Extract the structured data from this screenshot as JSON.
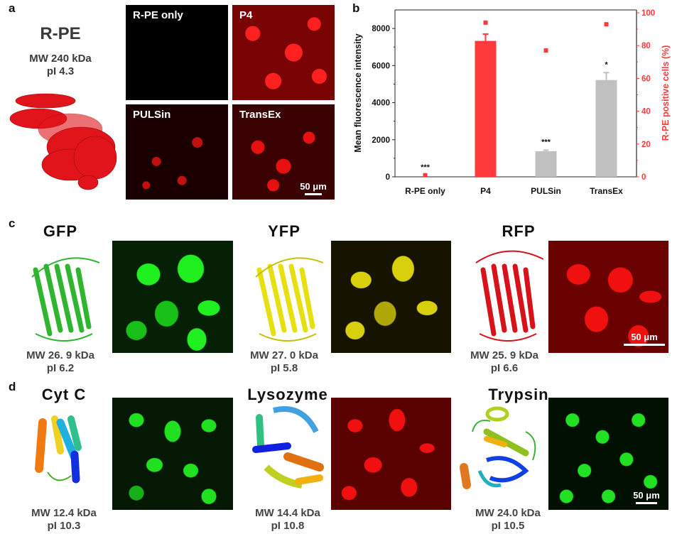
{
  "panel_a": {
    "letter": "a",
    "protein": {
      "name": "R-PE",
      "mw": "MW 240 kDa",
      "pi": "pI 4.3",
      "color": "#e0141a"
    },
    "images": [
      {
        "label": "R-PE only",
        "tint": "#000000"
      },
      {
        "label": "P4",
        "tint": "#e81010"
      },
      {
        "label": "PULSin",
        "tint": "#a00808"
      },
      {
        "label": "TransEx",
        "tint": "#c80c0c"
      }
    ],
    "scale_bar": "50 μm"
  },
  "panel_b": {
    "letter": "b"
  },
  "chart_data": {
    "type": "bar",
    "categories": [
      "R-PE only",
      "P4",
      "PULSin",
      "TransEx"
    ],
    "series": [
      {
        "name": "Mean fluorescence intensity",
        "axis": "left",
        "values": [
          0,
          7330,
          1380,
          5220
        ],
        "errors": [
          0,
          370,
          60,
          400
        ],
        "colors": [
          "#ff3a3a",
          "#ff3a3a",
          "#c0c0c0",
          "#c0c0c0"
        ]
      },
      {
        "name": "R-PE positive cells (%)",
        "axis": "right",
        "type": "scatter",
        "values": [
          1,
          94,
          77,
          93
        ],
        "color": "#ff3a3a"
      }
    ],
    "significance": [
      "***",
      "",
      "***",
      "*"
    ],
    "ylabel": "Mean fluorescence intensity",
    "ylabel_right": "R-PE positive cells (%)",
    "ylim": [
      0,
      9000
    ],
    "ylim_right": [
      0,
      100
    ],
    "yticks": [
      "0",
      "2000",
      "4000",
      "6000",
      "8000"
    ],
    "yticks_right": [
      "0",
      "20",
      "40",
      "60",
      "80",
      "100"
    ],
    "grid": false
  },
  "panel_c": {
    "letter": "c",
    "proteins": [
      {
        "name": "GFP",
        "mw": "MW 26. 9 kDa",
        "pi": "pI 6.2",
        "color": "#2fb52f",
        "cell": "#18e018"
      },
      {
        "name": "YFP",
        "mw": "MW 27. 0 kDa",
        "pi": "pI 5.8",
        "color": "#e6e010",
        "cell": "#d8d00c"
      },
      {
        "name": "RFP",
        "mw": "MW 25. 9 kDa",
        "pi": "pI 6.6",
        "color": "#d8121a",
        "cell": "#e81010"
      }
    ],
    "scale_bar": "50 μm"
  },
  "panel_d": {
    "letter": "d",
    "proteins": [
      {
        "name": "Cyt C",
        "mw": "MW 12.4  kDa",
        "pi": "pI 10.3",
        "cell": "#20e020"
      },
      {
        "name": "Lysozyme",
        "mw": "MW 14.4  kDa",
        "pi": "pI 10.8",
        "cell": "#f01010"
      },
      {
        "name": "Trypsin",
        "mw": "MW 24.0  kDa",
        "pi": "pI 10.5",
        "cell": "#22e022"
      }
    ],
    "scale_bar": "50 μm"
  }
}
